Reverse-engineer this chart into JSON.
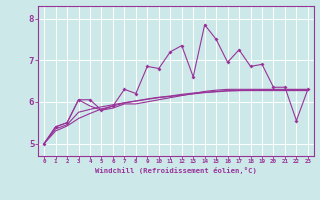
{
  "xlabel": "Windchill (Refroidissement éolien,°C)",
  "xlim": [
    -0.5,
    23.5
  ],
  "ylim": [
    4.7,
    8.3
  ],
  "yticks": [
    5,
    6,
    7,
    8
  ],
  "xticks": [
    0,
    1,
    2,
    3,
    4,
    5,
    6,
    7,
    8,
    9,
    10,
    11,
    12,
    13,
    14,
    15,
    16,
    17,
    18,
    19,
    20,
    21,
    22,
    23
  ],
  "bg_color": "#cce8e8",
  "line_color": "#993399",
  "grid_color": "#ffffff",
  "line1": [
    5.0,
    5.4,
    5.5,
    6.05,
    6.05,
    5.8,
    5.9,
    6.3,
    6.2,
    6.85,
    6.8,
    7.2,
    7.35,
    6.6,
    7.85,
    7.5,
    6.95,
    7.25,
    6.85,
    6.9,
    6.35,
    6.35,
    5.55,
    6.3
  ],
  "line2": [
    5.0,
    5.4,
    5.5,
    6.05,
    5.9,
    5.8,
    5.85,
    5.95,
    5.95,
    6.0,
    6.05,
    6.1,
    6.15,
    6.2,
    6.25,
    6.28,
    6.3,
    6.3,
    6.3,
    6.3,
    6.3,
    6.3,
    6.3,
    6.3
  ],
  "line3": [
    5.0,
    5.35,
    5.45,
    5.75,
    5.82,
    5.88,
    5.93,
    5.98,
    6.02,
    6.06,
    6.1,
    6.13,
    6.16,
    6.19,
    6.22,
    6.24,
    6.26,
    6.27,
    6.28,
    6.29,
    6.29,
    6.29,
    6.29,
    6.29
  ],
  "line4": [
    5.0,
    5.3,
    5.42,
    5.6,
    5.72,
    5.83,
    5.9,
    5.97,
    6.02,
    6.07,
    6.11,
    6.14,
    6.18,
    6.21,
    6.23,
    6.25,
    6.27,
    6.27,
    6.27,
    6.27,
    6.27,
    6.27,
    6.27,
    6.27
  ]
}
